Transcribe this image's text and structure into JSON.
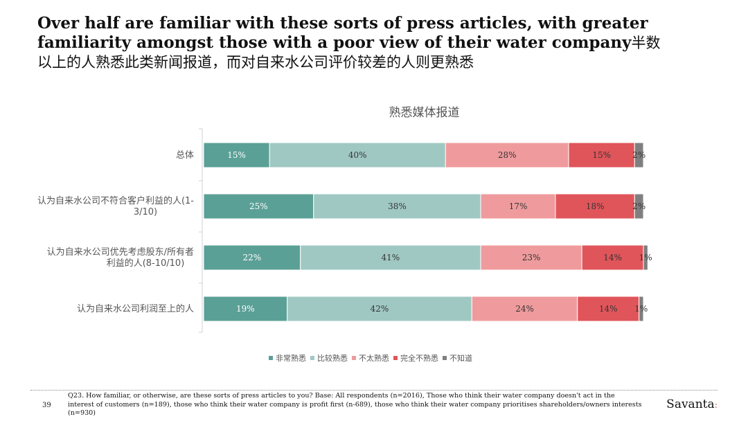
{
  "headline": {
    "en": "Over half are familiar with these sorts of press articles, with greater familiarity amongst those with a poor view of their water company",
    "zh_inline": "半数",
    "zh": "以上的人熟悉此类新闻报道，而对自来水公司评价较差的人则更熟悉"
  },
  "chart_data": {
    "type": "bar",
    "orientation": "horizontal",
    "stacked": true,
    "title": "熟悉媒体报道",
    "categories": [
      "总体",
      "认为自来水公司不符合客户利益的人(1-3/10)",
      "认为自来水公司优先考虑股东/所有者利益的人(8-10/10)",
      "认为自来水公司利润至上的人"
    ],
    "category_lines": [
      [
        "总体"
      ],
      [
        "认为自来水公司不符合客户利益的人(1-",
        "3/10)"
      ],
      [
        "认为自来水公司优先考虑股东/所有者",
        "利益的人(8-10/10)"
      ],
      [
        "认为自来水公司利润至上的人"
      ]
    ],
    "series": [
      {
        "name": "非常熟悉",
        "color": "#5ba096",
        "label_color": "#ffffff",
        "values": [
          15,
          25,
          22,
          19
        ]
      },
      {
        "name": "比较熟悉",
        "color": "#a0c8c3",
        "label_color": "#333333",
        "values": [
          40,
          38,
          41,
          42
        ]
      },
      {
        "name": "不太熟悉",
        "color": "#ef9b9d",
        "label_color": "#333333",
        "values": [
          28,
          17,
          23,
          24
        ]
      },
      {
        "name": "完全不熟悉",
        "color": "#e0555a",
        "label_color": "#333333",
        "values": [
          15,
          18,
          14,
          14
        ]
      },
      {
        "name": "不知道",
        "color": "#7f7f7f",
        "label_color": "#333333",
        "values": [
          2,
          2,
          1,
          1
        ]
      }
    ],
    "value_suffix": "%",
    "xlim": [
      0,
      100
    ],
    "legend_position": "bottom"
  },
  "footer": {
    "page_number": "39",
    "note": "Q23. How familiar, or otherwise, are these sorts of press articles to you? Base: All respondents (n=2016), Those who think their water company doesn't act in the interest of customers (n=189), those who think their water company is profit first (n-689), those who think their water company prioritises shareholders/owners interests (n=930)",
    "brand": "Savanta",
    "brand_mark": ":"
  }
}
